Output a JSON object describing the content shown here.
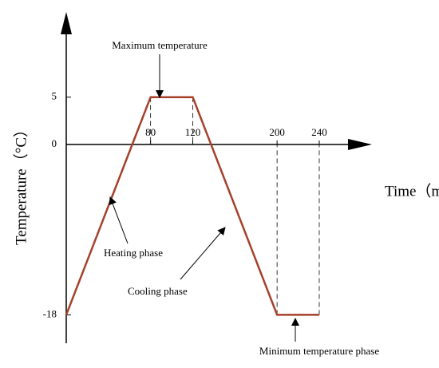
{
  "chart_data": {
    "type": "line",
    "x": [
      0,
      80,
      120,
      200,
      240
    ],
    "series": [
      {
        "color": "#a5402a",
        "values": [
          -18,
          5,
          5,
          -18,
          -18
        ]
      }
    ],
    "xlim": [
      0,
      290
    ],
    "ylim": [
      -21,
      14
    ],
    "xticks": [
      80,
      120,
      200,
      240
    ],
    "yticks": [
      -18,
      0,
      5
    ],
    "x_label": "Time（min）",
    "y_label": "Temperature（°C）",
    "annotations": [
      "Maximum temperature",
      "Heating phase",
      "Cooling phase",
      "Minimum temperature phase"
    ]
  }
}
